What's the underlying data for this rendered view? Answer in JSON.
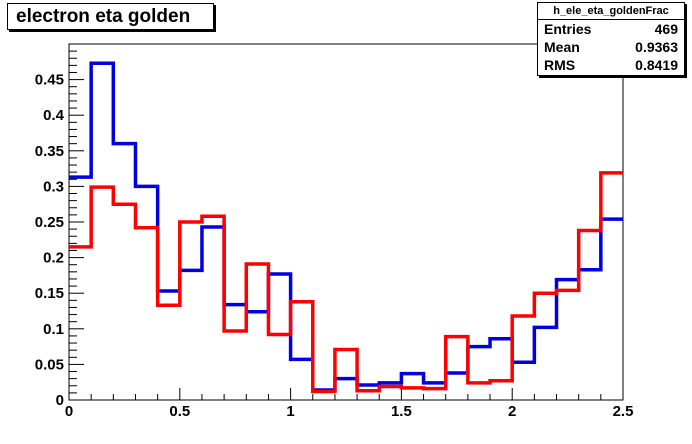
{
  "title": "electron eta golden",
  "stats": {
    "name": "h_ele_eta_goldenFrac",
    "rows": [
      {
        "label": "Entries",
        "value": "469"
      },
      {
        "label": "Mean",
        "value": "0.9363"
      },
      {
        "label": "RMS",
        "value": "0.8419"
      }
    ]
  },
  "chart_data": {
    "type": "histogram",
    "title": "electron eta golden",
    "xlim": [
      0,
      2.5
    ],
    "ylim": [
      0,
      0.5
    ],
    "bin_width": 0.1,
    "x_ticks": [
      "0",
      "0.5",
      "1",
      "1.5",
      "2",
      "2.5"
    ],
    "y_ticks": [
      "0",
      "0.05",
      "0.1",
      "0.15",
      "0.2",
      "0.25",
      "0.3",
      "0.35",
      "0.4",
      "0.45"
    ],
    "grid": false,
    "series": [
      {
        "color": "#0000e0",
        "values": [
          0.313,
          0.473,
          0.36,
          0.3,
          0.153,
          0.182,
          0.243,
          0.134,
          0.124,
          0.177,
          0.057,
          0.014,
          0.03,
          0.021,
          0.024,
          0.037,
          0.024,
          0.038,
          0.075,
          0.086,
          0.053,
          0.102,
          0.169,
          0.183,
          0.254
        ]
      },
      {
        "color": "#ff0000",
        "values": [
          0.215,
          0.299,
          0.275,
          0.242,
          0.133,
          0.25,
          0.258,
          0.097,
          0.191,
          0.092,
          0.138,
          0.012,
          0.071,
          0.013,
          0.019,
          0.017,
          0.016,
          0.089,
          0.024,
          0.027,
          0.118,
          0.15,
          0.154,
          0.238,
          0.319
        ]
      }
    ]
  }
}
